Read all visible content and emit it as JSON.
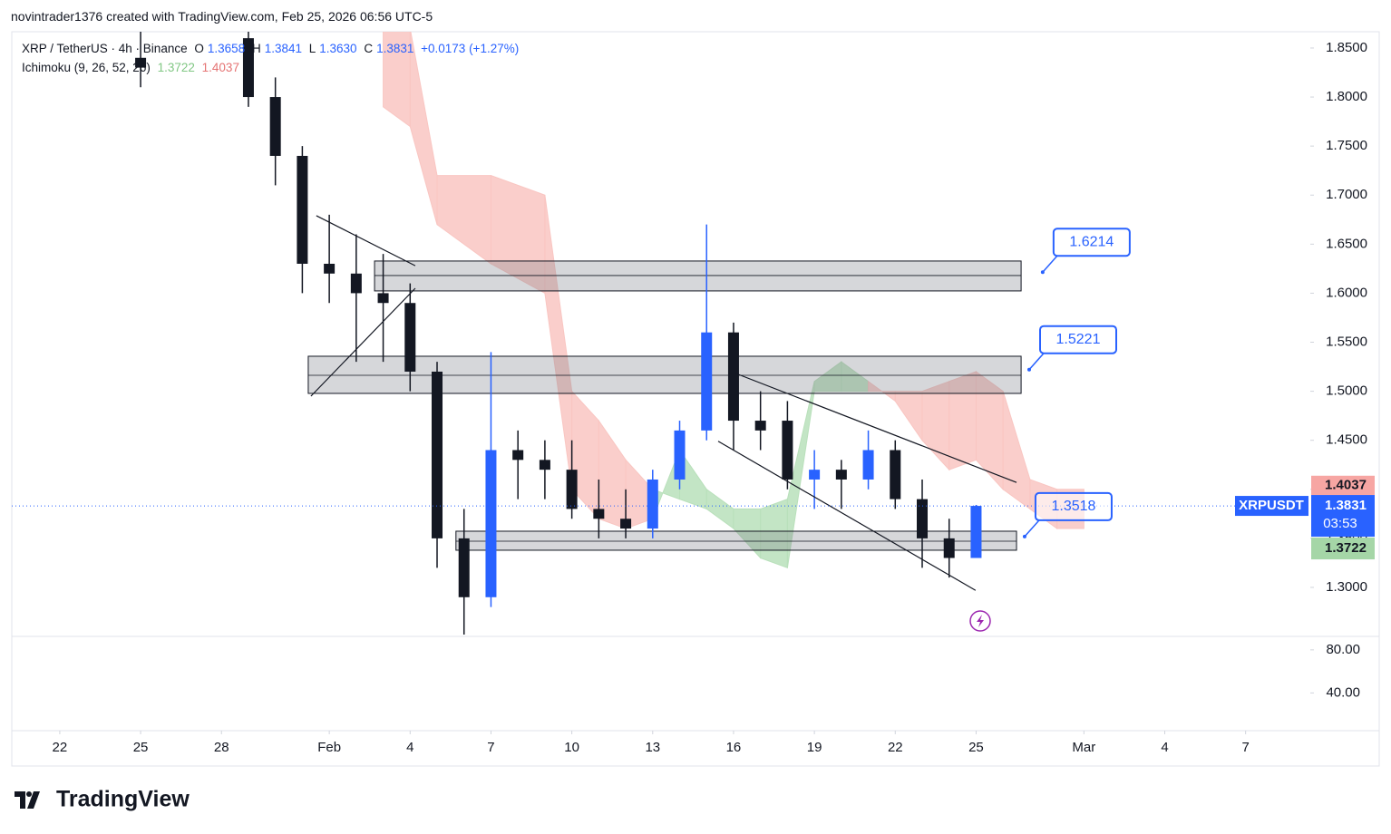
{
  "header": {
    "attribution": "novintrader1376 created with TradingView.com, Feb 25, 2026 06:56 UTC-5"
  },
  "legend": {
    "symbol": "XRP / TetherUS · 4h · Binance",
    "o_label": "O",
    "open": "1.3658",
    "h_label": "H",
    "high": "1.3841",
    "l_label": "L",
    "low": "1.3630",
    "c_label": "C",
    "close": "1.3831",
    "change": "+0.0173 (+1.27%)",
    "indicator": "Ichimoku (9, 26, 52, 26)",
    "ind_a": "1.3722",
    "ind_b": "1.4037"
  },
  "chart_data": {
    "type": "candlestick",
    "x": [
      3,
      7,
      8,
      9,
      10,
      11,
      12,
      13,
      14,
      15,
      16,
      17,
      18,
      19,
      20,
      21,
      22,
      23,
      24,
      25,
      26,
      27,
      28,
      29,
      30,
      31,
      32,
      33,
      34
    ],
    "open": [
      1.84,
      1.86,
      1.8,
      1.74,
      1.63,
      1.62,
      1.6,
      1.59,
      1.52,
      1.35,
      1.29,
      1.44,
      1.43,
      1.42,
      1.38,
      1.37,
      1.36,
      1.41,
      1.46,
      1.56,
      1.47,
      1.47,
      1.41,
      1.42,
      1.41,
      1.44,
      1.39,
      1.35,
      1.33
    ],
    "high": [
      1.87,
      1.87,
      1.82,
      1.75,
      1.68,
      1.66,
      1.64,
      1.61,
      1.53,
      1.38,
      1.54,
      1.46,
      1.45,
      1.45,
      1.41,
      1.4,
      1.42,
      1.47,
      1.67,
      1.57,
      1.5,
      1.49,
      1.44,
      1.43,
      1.46,
      1.45,
      1.41,
      1.37,
      1.3841
    ],
    "low": [
      1.81,
      1.79,
      1.71,
      1.6,
      1.59,
      1.53,
      1.53,
      1.5,
      1.32,
      1.25,
      1.28,
      1.39,
      1.39,
      1.37,
      1.35,
      1.35,
      1.35,
      1.4,
      1.45,
      1.44,
      1.44,
      1.4,
      1.38,
      1.38,
      1.4,
      1.38,
      1.32,
      1.31,
      1.33
    ],
    "close": [
      1.83,
      1.8,
      1.74,
      1.63,
      1.62,
      1.6,
      1.59,
      1.52,
      1.35,
      1.29,
      1.44,
      1.43,
      1.42,
      1.38,
      1.37,
      1.36,
      1.41,
      1.46,
      1.56,
      1.47,
      1.46,
      1.41,
      1.42,
      1.41,
      1.44,
      1.39,
      1.35,
      1.33,
      1.3831
    ],
    "colors": {
      "up": "#2962ff",
      "down": "#131722"
    },
    "xlim": [
      -1.78,
      46.4
    ],
    "xticks": [
      {
        "value": 0,
        "label": "22"
      },
      {
        "value": 3,
        "label": "25"
      },
      {
        "value": 6,
        "label": "28"
      },
      {
        "value": 10,
        "label": "Feb"
      },
      {
        "value": 13,
        "label": "4"
      },
      {
        "value": 16,
        "label": "7"
      },
      {
        "value": 19,
        "label": "10"
      },
      {
        "value": 22,
        "label": "13"
      },
      {
        "value": 25,
        "label": "16"
      },
      {
        "value": 28,
        "label": "19"
      },
      {
        "value": 31,
        "label": "22"
      },
      {
        "value": 34,
        "label": "25"
      },
      {
        "value": 38,
        "label": "Mar"
      },
      {
        "value": 41,
        "label": "4"
      },
      {
        "value": 44,
        "label": "7"
      }
    ],
    "ylim": [
      1.2519,
      1.8666
    ],
    "yticks": [
      {
        "value": 1.3,
        "label": "1.3000"
      },
      {
        "value": 1.35,
        "label": "1.3500"
      },
      {
        "value": 1.4,
        "label": "1.4000"
      },
      {
        "value": 1.45,
        "label": "1.4500"
      },
      {
        "value": 1.5,
        "label": "1.5000"
      },
      {
        "value": 1.55,
        "label": "1.5500"
      },
      {
        "value": 1.6,
        "label": "1.6000"
      },
      {
        "value": 1.65,
        "label": "1.6500"
      },
      {
        "value": 1.7,
        "label": "1.7000"
      },
      {
        "value": 1.75,
        "label": "1.7500"
      },
      {
        "value": 1.8,
        "label": "1.8000"
      },
      {
        "value": 1.85,
        "label": "1.8500"
      }
    ],
    "cloud": {
      "x": [
        12,
        13,
        14,
        16,
        18,
        19,
        20,
        21,
        22,
        23,
        24,
        25,
        26,
        27,
        28,
        29,
        30,
        31,
        32,
        33,
        34,
        35,
        36,
        37,
        38
      ],
      "span_a": [
        1.79,
        1.77,
        1.67,
        1.63,
        1.6,
        1.4,
        1.37,
        1.36,
        1.37,
        1.44,
        1.4,
        1.38,
        1.38,
        1.39,
        1.51,
        1.53,
        1.51,
        1.49,
        1.45,
        1.42,
        1.43,
        1.4,
        1.38,
        1.36,
        1.36
      ],
      "span_b": [
        1.87,
        1.87,
        1.72,
        1.72,
        1.7,
        1.5,
        1.47,
        1.43,
        1.4,
        1.39,
        1.38,
        1.36,
        1.33,
        1.32,
        1.5,
        1.5,
        1.5,
        1.5,
        1.5,
        1.51,
        1.52,
        1.5,
        1.41,
        1.4,
        1.4
      ],
      "up_color": "#b9e0bb",
      "down_color": "#f9c6c2"
    },
    "zones": [
      {
        "x": [
          11.68,
          35.67
        ],
        "top": 1.6328,
        "mid": 1.618,
        "bottom": 1.6023
      },
      {
        "x": [
          9.22,
          35.67
        ],
        "top": 1.5357,
        "mid": 1.5163,
        "bottom": 1.4978
      },
      {
        "x": [
          14.7,
          35.5
        ],
        "top": 1.3573,
        "mid": 1.3471,
        "bottom": 1.3379
      }
    ],
    "trendlines": [
      {
        "x": [
          9.52,
          13.19
        ],
        "y": [
          1.679,
          1.628
        ]
      },
      {
        "x": [
          9.32,
          13.19
        ],
        "y": [
          1.495,
          1.605
        ]
      },
      {
        "x": [
          25.1,
          35.5
        ],
        "y": [
          1.518,
          1.407
        ]
      },
      {
        "x": [
          24.43,
          33.98
        ],
        "y": [
          1.449,
          1.297
        ]
      }
    ],
    "callouts": [
      {
        "x": 36.47,
        "value": 1.6214
      },
      {
        "x": 35.97,
        "value": 1.5221
      },
      {
        "x": 35.8,
        "value": 1.3518
      }
    ],
    "last_price": {
      "symbol": "XRPUSDT",
      "value": 1.3831,
      "countdown": "03:53",
      "color": "#2962ff"
    },
    "price_tags": [
      {
        "value": 1.4037,
        "color": "#f7a6a3"
      },
      {
        "value": 1.3722,
        "color": "#a5d6a7"
      }
    ]
  },
  "indicator_pane": {
    "ylim": [
      5,
      92.5
    ],
    "yticks": [
      {
        "value": 80,
        "label": "80.00"
      },
      {
        "value": 40,
        "label": "40.00"
      }
    ]
  },
  "brand": "TradingView"
}
